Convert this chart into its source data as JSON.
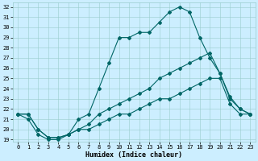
{
  "title": "",
  "xlabel": "Humidex (Indice chaleur)",
  "bg_color": "#cceeff",
  "grid_color": "#99cccc",
  "line_color": "#006666",
  "xlim": [
    -0.5,
    23.5
  ],
  "ylim": [
    18.8,
    32.4
  ],
  "xticks": [
    0,
    1,
    2,
    3,
    4,
    5,
    6,
    7,
    8,
    9,
    10,
    11,
    12,
    13,
    14,
    15,
    16,
    17,
    18,
    19,
    20,
    21,
    22,
    23
  ],
  "yticks": [
    19,
    20,
    21,
    22,
    23,
    24,
    25,
    26,
    27,
    28,
    29,
    30,
    31,
    32
  ],
  "line1_x": [
    0,
    1,
    2,
    3,
    4,
    5,
    6,
    7,
    8,
    9,
    10,
    11,
    12,
    13,
    14,
    15,
    16,
    17,
    18,
    19,
    20,
    21,
    22,
    23
  ],
  "line1_y": [
    21.5,
    21.0,
    19.5,
    19.0,
    19.0,
    19.5,
    21.0,
    21.5,
    24.0,
    26.5,
    29.0,
    29.0,
    29.5,
    29.5,
    30.5,
    31.5,
    32.0,
    31.5,
    29.0,
    27.0,
    25.5,
    23.0,
    22.0,
    21.5
  ],
  "line2_x": [
    0,
    1,
    2,
    3,
    4,
    5,
    6,
    7,
    8,
    9,
    10,
    11,
    12,
    13,
    14,
    15,
    16,
    17,
    18,
    19,
    20,
    21,
    22,
    23
  ],
  "line2_y": [
    21.5,
    21.5,
    20.0,
    19.2,
    19.2,
    19.5,
    20.0,
    20.5,
    21.5,
    22.0,
    22.5,
    23.0,
    23.5,
    24.0,
    25.0,
    25.5,
    26.0,
    26.5,
    27.0,
    27.5,
    25.5,
    23.2,
    22.0,
    21.5
  ],
  "line3_x": [
    0,
    1,
    2,
    3,
    4,
    5,
    6,
    7,
    8,
    9,
    10,
    11,
    12,
    13,
    14,
    15,
    16,
    17,
    18,
    19,
    20,
    21,
    22,
    23
  ],
  "line3_y": [
    21.5,
    21.5,
    20.0,
    19.2,
    19.2,
    19.5,
    20.0,
    20.0,
    20.5,
    21.0,
    21.5,
    21.5,
    22.0,
    22.5,
    23.0,
    23.0,
    23.5,
    24.0,
    24.5,
    25.0,
    25.0,
    22.5,
    21.5,
    21.5
  ],
  "tick_fontsize": 5.0,
  "xlabel_fontsize": 6.0,
  "marker_size": 2.0,
  "line_width": 0.8
}
